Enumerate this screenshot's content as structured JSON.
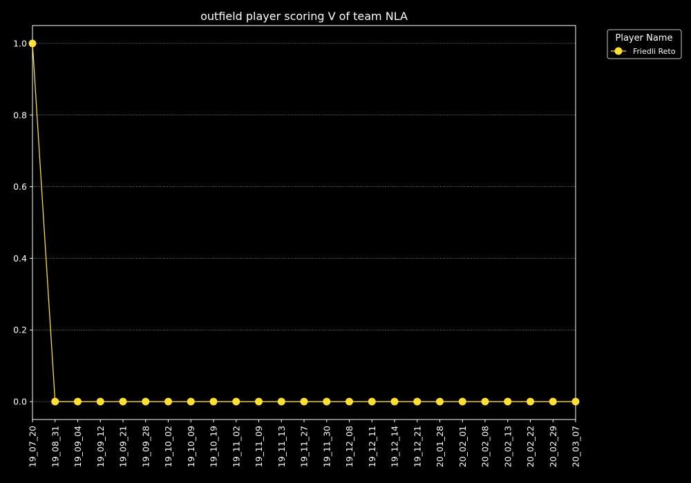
{
  "chart_data": {
    "type": "line",
    "title": "outfield player scoring V of team NLA",
    "xlabel": "",
    "ylabel": "",
    "x": [
      "19_07_20",
      "19_08_31",
      "19_09_04",
      "19_09_12",
      "19_09_21",
      "19_09_28",
      "19_10_02",
      "19_10_09",
      "19_10_19",
      "19_11_02",
      "19_11_09",
      "19_11_13",
      "19_11_27",
      "19_11_30",
      "19_12_08",
      "19_12_11",
      "19_12_14",
      "19_12_21",
      "20_01_28",
      "20_02_01",
      "20_02_08",
      "20_02_13",
      "20_02_22",
      "20_02_29",
      "20_03_07"
    ],
    "series": [
      {
        "name": "Friedli Reto",
        "color": "#ffe033",
        "values": [
          1,
          0,
          0,
          0,
          0,
          0,
          0,
          0,
          0,
          0,
          0,
          0,
          0,
          0,
          0,
          0,
          0,
          0,
          0,
          0,
          0,
          0,
          0,
          0,
          0
        ]
      }
    ],
    "ylim": [
      -0.05,
      1.05
    ],
    "yticks": [
      "0.0",
      "0.2",
      "0.4",
      "0.6",
      "0.8",
      "1.0"
    ],
    "grid": "horizontal-dotted",
    "legend": {
      "title": "Player Name",
      "placement": "outside-top-right"
    },
    "background": "#000000",
    "foreground": "#ffffff"
  }
}
